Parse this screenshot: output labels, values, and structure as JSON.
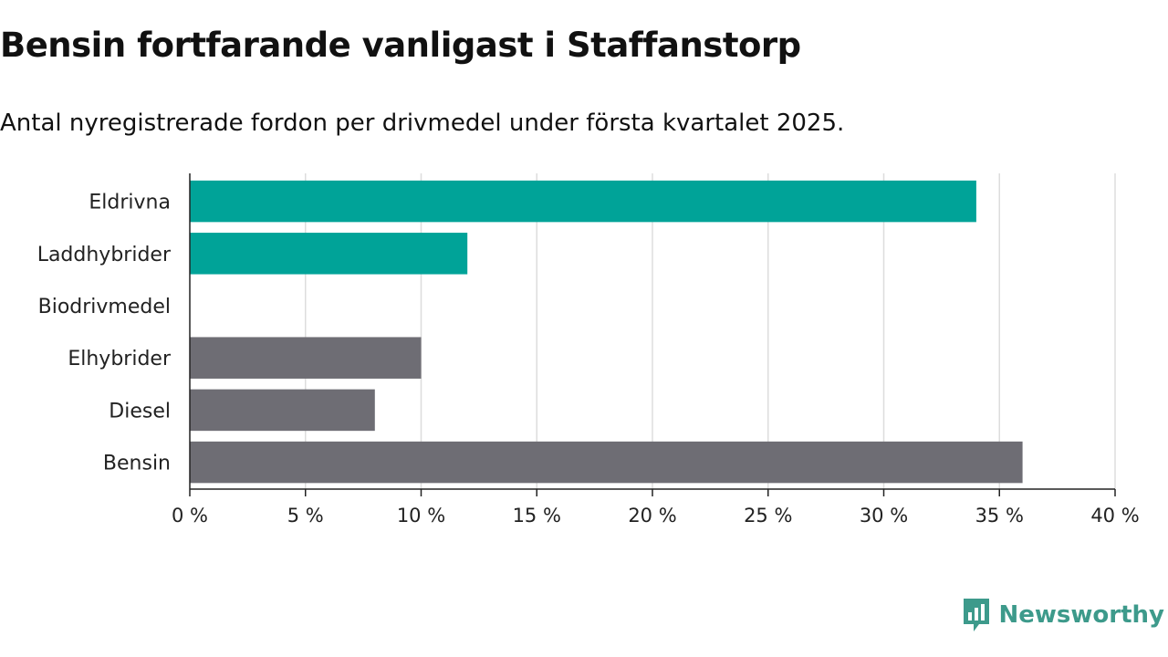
{
  "title": "Bensin fortfarande vanligast i Staffanstorp",
  "subtitle": "Antal nyregistrerade fordon per drivmedel under första kvartalet 2025.",
  "colors": {
    "electrified": "#00a398",
    "other": "#6e6d74",
    "grid": "#dddddd",
    "axis": "#222222",
    "brand": "#3d9a8b"
  },
  "brand": {
    "name": "Newsworthy",
    "icon": "newsworthy-logo-icon"
  },
  "chart_data": {
    "type": "bar",
    "orientation": "horizontal",
    "categories": [
      "Eldrivna",
      "Laddhybrider",
      "Biodrivmedel",
      "Elhybrider",
      "Diesel",
      "Bensin"
    ],
    "values": [
      34,
      12,
      0,
      10,
      8,
      36
    ],
    "bar_colors": [
      "#00a398",
      "#00a398",
      "#00a398",
      "#6e6d74",
      "#6e6d74",
      "#6e6d74"
    ],
    "xlim": [
      0,
      40
    ],
    "xticks": [
      0,
      5,
      10,
      15,
      20,
      25,
      30,
      35,
      40
    ],
    "xtick_labels": [
      "0 %",
      "5 %",
      "10 %",
      "15 %",
      "20 %",
      "25 %",
      "30 %",
      "35 %",
      "40 %"
    ],
    "unit": "%",
    "grid": true
  }
}
